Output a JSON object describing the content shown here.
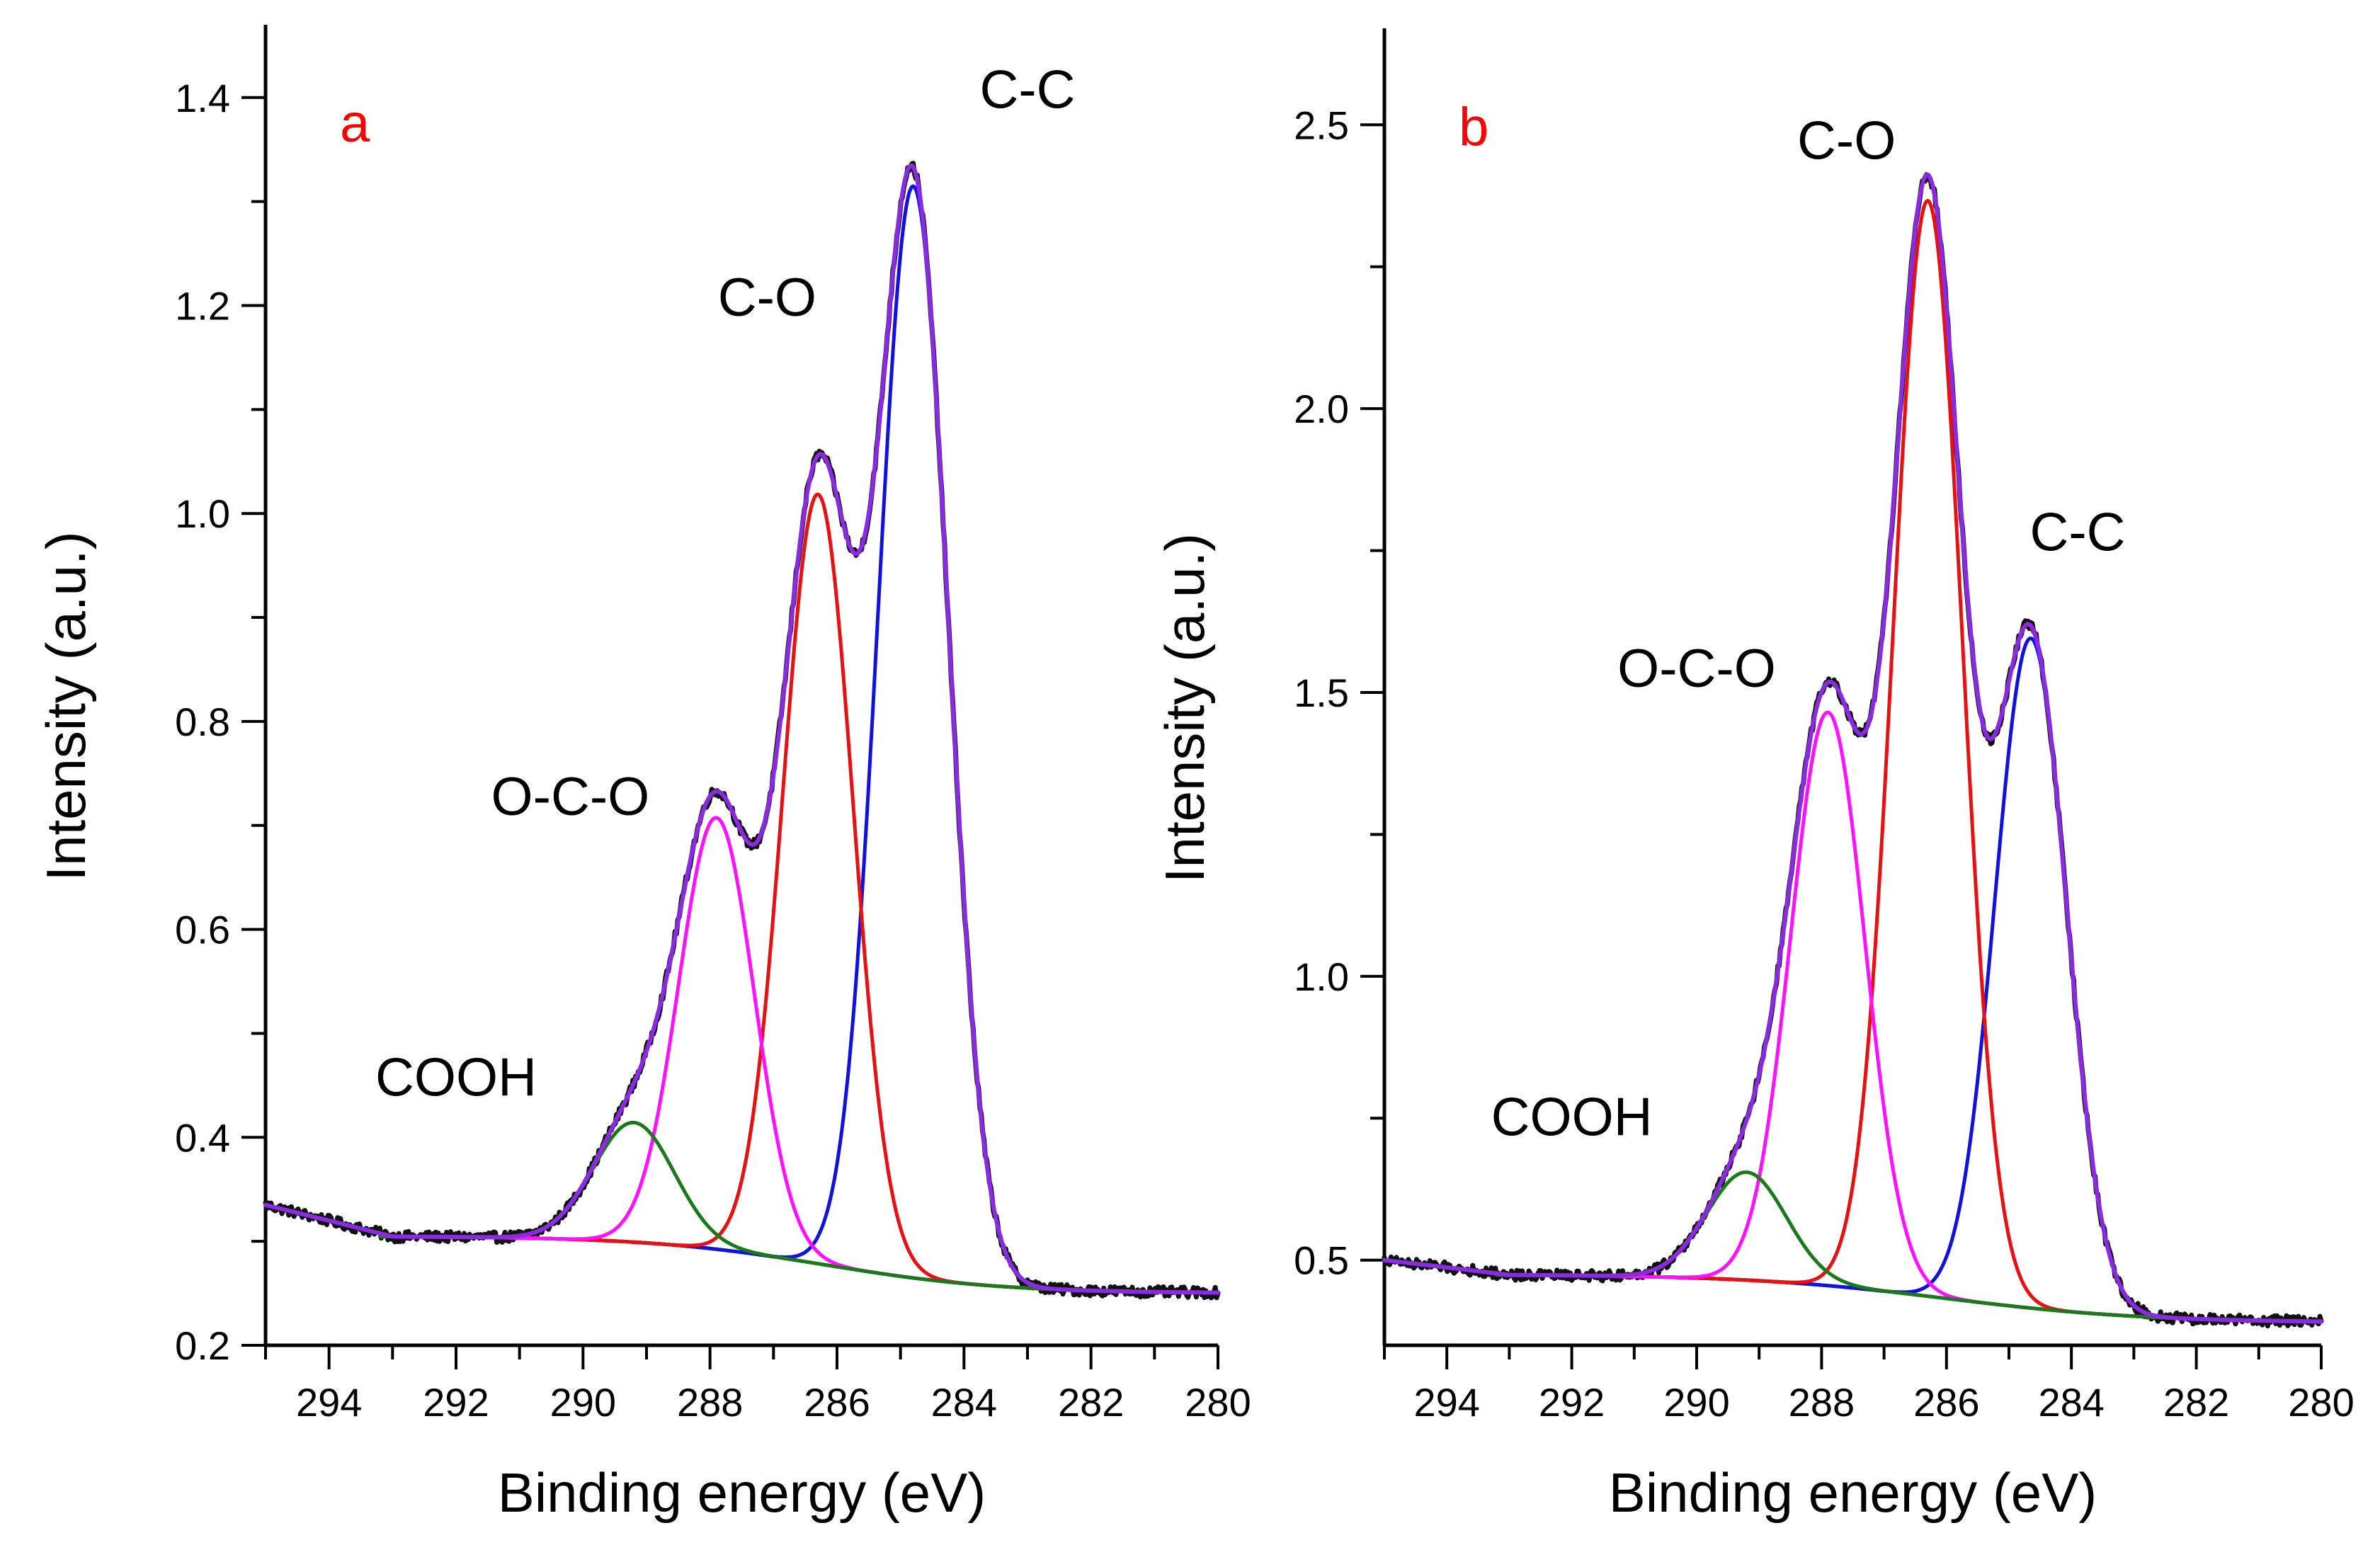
{
  "colors": {
    "raw": "#111111",
    "envelope": "#8a2be2",
    "baseline": "#1a237e",
    "cc": "#1010e0",
    "co": "#e81010",
    "oco": "#ff10ff",
    "cooh": "#1a7a1a"
  },
  "chart_data": [
    {
      "type": "line",
      "panel_label": "a",
      "xlabel": "Binding energy (eV)",
      "ylabel": "Intensity (a.u.)",
      "xlim": [
        295,
        280
      ],
      "x_reversed": true,
      "ylim": [
        0.2,
        1.47
      ],
      "xticks": [
        294,
        292,
        290,
        288,
        286,
        284,
        282,
        280
      ],
      "yticks": [
        0.2,
        0.4,
        0.6,
        0.8,
        1.0,
        1.2,
        1.4
      ],
      "ytick_labels": [
        "0.2",
        "0.4",
        "0.6",
        "0.8",
        "1.0",
        "1.2",
        "1.4"
      ],
      "baseline": {
        "left": 0.305,
        "right": 0.25,
        "center": 286.2,
        "width": 1.4
      },
      "components": [
        {
          "name": "C-C",
          "label": "C-C",
          "color_key": "cc",
          "center": 284.8,
          "height": 1.05,
          "fwhm": 1.3
        },
        {
          "name": "C-O",
          "label": "C-O",
          "color_key": "co",
          "center": 286.3,
          "height": 0.74,
          "fwhm": 1.3
        },
        {
          "name": "O-C-O",
          "label": "O-C-O",
          "color_key": "oco",
          "center": 287.9,
          "height": 0.415,
          "fwhm": 1.4
        },
        {
          "name": "COOH",
          "label": "COOH",
          "color_key": "cooh",
          "center": 289.2,
          "height": 0.115,
          "fwhm": 1.5
        }
      ],
      "raw_start": 0.335,
      "peak_labels": [
        {
          "text": "C-C",
          "x": 283.0,
          "y": 1.39
        },
        {
          "text": "C-O",
          "x": 287.1,
          "y": 1.19
        },
        {
          "text": "O-C-O",
          "x": 290.2,
          "y": 0.71
        },
        {
          "text": "COOH",
          "x": 292.0,
          "y": 0.44
        }
      ]
    },
    {
      "type": "line",
      "panel_label": "b",
      "xlabel": "Binding energy (eV)",
      "ylabel": "Intensity (a.u.)",
      "xlim": [
        295,
        280
      ],
      "x_reversed": true,
      "ylim": [
        0.35,
        2.67
      ],
      "xticks": [
        294,
        292,
        290,
        288,
        286,
        284,
        282,
        280
      ],
      "yticks": [
        0.5,
        1.0,
        1.5,
        2.0,
        2.5
      ],
      "ytick_labels": [
        "0.5",
        "1.0",
        "1.5",
        "2.0",
        "2.5"
      ],
      "baseline": {
        "left": 0.475,
        "right": 0.39,
        "center": 286.0,
        "width": 1.6
      },
      "components": [
        {
          "name": "C-C",
          "label": "C-C",
          "color_key": "cc",
          "center": 284.65,
          "height": 1.18,
          "fwhm": 1.35
        },
        {
          "name": "C-O",
          "label": "C-O",
          "color_key": "co",
          "center": 286.3,
          "height": 1.93,
          "fwhm": 1.3
        },
        {
          "name": "O-C-O",
          "label": "O-C-O",
          "color_key": "oco",
          "center": 287.9,
          "height": 1.01,
          "fwhm": 1.4
        },
        {
          "name": "COOH",
          "label": "COOH",
          "color_key": "cooh",
          "center": 289.2,
          "height": 0.19,
          "fwhm": 1.5
        }
      ],
      "raw_start": 0.5,
      "peak_labels": [
        {
          "text": "C-O",
          "x": 287.6,
          "y": 2.44
        },
        {
          "text": "C-C",
          "x": 283.9,
          "y": 1.75
        },
        {
          "text": "O-C-O",
          "x": 290.0,
          "y": 1.51
        },
        {
          "text": "COOH",
          "x": 292.0,
          "y": 0.72
        }
      ]
    }
  ]
}
